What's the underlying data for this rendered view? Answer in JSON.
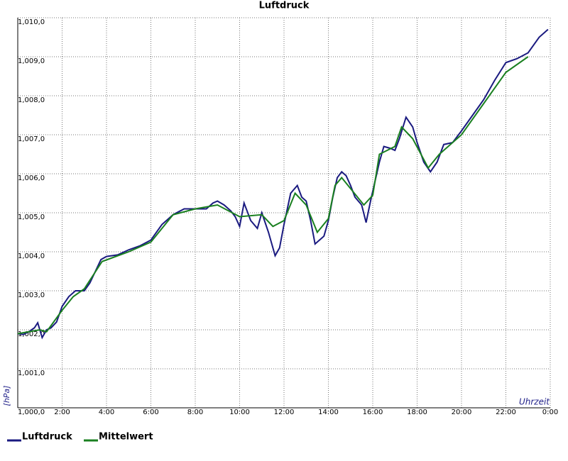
{
  "chart_data": {
    "type": "line",
    "title": "Luftdruck",
    "ylabel": "[hPa]",
    "xlabel": "Uhrzeit",
    "xlim": [
      0,
      24
    ],
    "xticks": [
      {
        "value": 2,
        "label": "2:00"
      },
      {
        "value": 4,
        "label": "4:00"
      },
      {
        "value": 6,
        "label": "6:00"
      },
      {
        "value": 8,
        "label": "8:00"
      },
      {
        "value": 10,
        "label": "10:00"
      },
      {
        "value": 12,
        "label": "12:00"
      },
      {
        "value": 14,
        "label": "14:00"
      },
      {
        "value": 16,
        "label": "16:00"
      },
      {
        "value": 18,
        "label": "18:00"
      },
      {
        "value": 20,
        "label": "20:00"
      },
      {
        "value": 22,
        "label": "22:00"
      },
      {
        "value": 24,
        "label": "0:00"
      }
    ],
    "ylim": [
      1000,
      1010
    ],
    "yticks": [
      {
        "value": 1000,
        "label": "1,000,0"
      },
      {
        "value": 1001,
        "label": "1,001,0"
      },
      {
        "value": 1002,
        "label": "1,002,0"
      },
      {
        "value": 1003,
        "label": "1,003,0"
      },
      {
        "value": 1004,
        "label": "1,004,0"
      },
      {
        "value": 1005,
        "label": "1,005,0"
      },
      {
        "value": 1006,
        "label": "1,006,0"
      },
      {
        "value": 1007,
        "label": "1,007,0"
      },
      {
        "value": 1008,
        "label": "1,008,0"
      },
      {
        "value": 1009,
        "label": "1,009,0"
      },
      {
        "value": 1010,
        "label": "1,010,0"
      }
    ],
    "grid": true,
    "series": [
      {
        "name": "Luftdruck",
        "color": "#1a1a80",
        "x": [
          0,
          0.25,
          0.5,
          0.75,
          0.9,
          1.1,
          1.3,
          1.5,
          1.75,
          2,
          2.3,
          2.6,
          3,
          3.25,
          3.5,
          3.75,
          4,
          4.5,
          5,
          5.5,
          6,
          6.5,
          7,
          7.5,
          8,
          8.5,
          8.8,
          9,
          9.3,
          9.6,
          9.8,
          10,
          10.2,
          10.5,
          10.8,
          11,
          11.3,
          11.6,
          11.8,
          12,
          12.3,
          12.6,
          12.8,
          13,
          13.2,
          13.4,
          13.6,
          13.8,
          14,
          14.2,
          14.4,
          14.6,
          14.8,
          15,
          15.2,
          15.5,
          15.7,
          15.9,
          16.1,
          16.3,
          16.5,
          16.8,
          17,
          17.2,
          17.5,
          17.8,
          18,
          18.3,
          18.6,
          18.9,
          19.2,
          19.6,
          20,
          20.5,
          21,
          21.5,
          22,
          22.5,
          23,
          23.5,
          23.9
        ],
        "values": [
          1001.9,
          1001.88,
          1001.95,
          1002.05,
          1002.18,
          1001.8,
          1002.0,
          1002.05,
          1002.2,
          1002.6,
          1002.85,
          1003.0,
          1003.0,
          1003.2,
          1003.5,
          1003.8,
          1003.88,
          1003.92,
          1004.05,
          1004.15,
          1004.3,
          1004.7,
          1004.95,
          1005.1,
          1005.1,
          1005.1,
          1005.25,
          1005.3,
          1005.2,
          1005.05,
          1004.9,
          1004.65,
          1005.25,
          1004.8,
          1004.6,
          1005.0,
          1004.5,
          1003.9,
          1004.1,
          1004.7,
          1005.5,
          1005.7,
          1005.4,
          1005.3,
          1004.8,
          1004.2,
          1004.3,
          1004.4,
          1004.8,
          1005.4,
          1005.9,
          1006.05,
          1005.95,
          1005.7,
          1005.4,
          1005.2,
          1004.75,
          1005.3,
          1005.8,
          1006.3,
          1006.7,
          1006.65,
          1006.6,
          1006.9,
          1007.45,
          1007.2,
          1006.8,
          1006.3,
          1006.05,
          1006.3,
          1006.75,
          1006.8,
          1007.1,
          1007.5,
          1007.9,
          1008.4,
          1008.85,
          1008.95,
          1009.1,
          1009.5,
          1009.7
        ]
      },
      {
        "name": "Mittelwert",
        "color": "#1a8020",
        "x": [
          0,
          1,
          1.3,
          2,
          2.5,
          3,
          3.8,
          5,
          6,
          7,
          8,
          9,
          10,
          11,
          11.5,
          12,
          12.5,
          13,
          13.5,
          14,
          14.3,
          14.6,
          15.6,
          16,
          16.3,
          17,
          17.3,
          17.8,
          18.5,
          19,
          20,
          21,
          22,
          23
        ],
        "values": [
          1001.9,
          1002.0,
          1001.95,
          1002.5,
          1002.85,
          1003.05,
          1003.75,
          1004.0,
          1004.25,
          1004.95,
          1005.1,
          1005.2,
          1004.9,
          1004.95,
          1004.65,
          1004.8,
          1005.5,
          1005.2,
          1004.5,
          1004.85,
          1005.7,
          1005.9,
          1005.2,
          1005.45,
          1006.5,
          1006.7,
          1007.2,
          1006.9,
          1006.15,
          1006.5,
          1007.0,
          1007.8,
          1008.6,
          1009.0
        ]
      }
    ]
  }
}
